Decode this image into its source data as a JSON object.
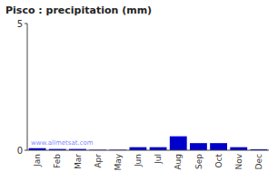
{
  "chart_data": {
    "type": "bar",
    "title": "Pisco : precipitation (mm)",
    "categories": [
      "Jan",
      "Feb",
      "Mar",
      "Apr",
      "May",
      "Jun",
      "Jul",
      "Aug",
      "Sep",
      "Oct",
      "Nov",
      "Dec"
    ],
    "values": [
      0.08,
      0.05,
      0.05,
      0.02,
      0.02,
      0.12,
      0.12,
      0.55,
      0.28,
      0.28,
      0.12,
      0.04
    ],
    "color": "#0000cc",
    "ylim": [
      0,
      5
    ],
    "yticks": [
      0,
      5
    ],
    "annotations": [
      "www.allmetsat.com"
    ]
  }
}
